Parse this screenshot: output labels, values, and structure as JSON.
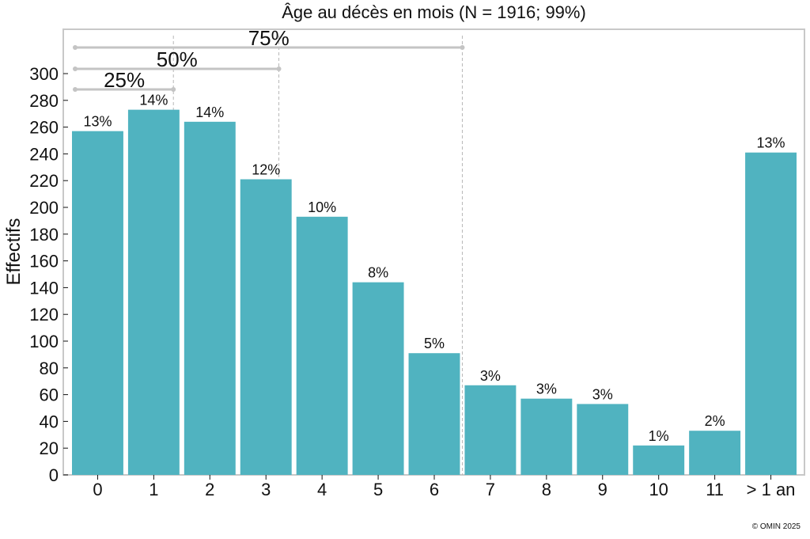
{
  "chart_data": {
    "type": "bar",
    "title": "Âge au décès en mois (N = 1916; 99%)",
    "xlabel": "",
    "ylabel": "Effectifs",
    "ylim": [
      0,
      330
    ],
    "yticks": [
      0,
      20,
      40,
      60,
      80,
      100,
      120,
      140,
      160,
      180,
      200,
      220,
      240,
      260,
      280,
      300
    ],
    "categories": [
      "0",
      "1",
      "2",
      "3",
      "4",
      "5",
      "6",
      "7",
      "8",
      "9",
      "10",
      "11",
      "> 1 an"
    ],
    "values": [
      257,
      273,
      264,
      221,
      193,
      144,
      91,
      67,
      57,
      53,
      22,
      33,
      241
    ],
    "labels": [
      "13%",
      "14%",
      "14%",
      "12%",
      "10%",
      "8%",
      "5%",
      "3%",
      "3%",
      "3%",
      "1%",
      "2%",
      "13%"
    ],
    "bar_color": "#50b3c0",
    "quantiles": [
      {
        "label": "25%",
        "x": 1.35
      },
      {
        "label": "50%",
        "x": 3.23
      },
      {
        "label": "75%",
        "x": 6.5
      }
    ],
    "grid": false
  },
  "credit": "© OMIN 2025"
}
